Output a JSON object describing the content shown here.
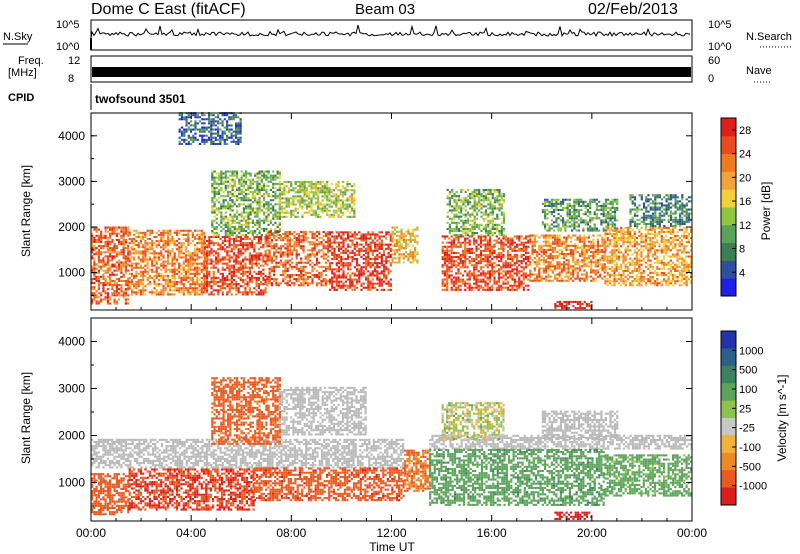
{
  "header": {
    "title": "Dome C East (fitACF)",
    "beam": "Beam 03",
    "date": "02/Feb/2013"
  },
  "status": {
    "nsky_label": "N.Sky",
    "nsky_ticks": [
      "10^5",
      "10^0"
    ],
    "nsearch_label": "N.Search",
    "nsearch_ticks": [
      "10^5",
      "10^0"
    ],
    "freq_label_1": "Freq.",
    "freq_label_2": "[MHz]",
    "freq_ticks": [
      "12",
      "8"
    ],
    "nave_label": "Nave",
    "nave_ticks": [
      "60",
      "0"
    ],
    "cpid_label": "CPID",
    "cpid_value": "twofsound 3501"
  },
  "colors": {
    "power_scale": [
      "#1f1fe6",
      "#2d4fa0",
      "#3b7e56",
      "#5aa15a",
      "#8ec63f",
      "#f1d23b",
      "#f2a33a",
      "#ef7a22",
      "#ea4a1f",
      "#e01e1e"
    ],
    "velocity_scale": [
      "#2233aa",
      "#2e5e8a",
      "#3c8262",
      "#5ca45b",
      "#8cc34d",
      "#c7c7c7",
      "#f0b23c",
      "#ee8a26",
      "#ea5a20",
      "#dd1c1c"
    ],
    "ground_scatter": "#b9b9b9"
  },
  "chart_data": [
    {
      "type": "heatmap",
      "title": "Power",
      "xlabel": "",
      "ylabel": "Slant Range [km]",
      "xlim": [
        0,
        24
      ],
      "ylim": [
        180,
        4500
      ],
      "x_ticks": [
        "00:00",
        "04:00",
        "08:00",
        "12:00",
        "16:00",
        "20:00",
        "00:00"
      ],
      "y_ticks": [
        1000,
        2000,
        3000,
        4000
      ],
      "colorbar_label": "Power [dB]",
      "colorbar_ticks": [
        4,
        8,
        12,
        16,
        20,
        24,
        28
      ],
      "colorbar_range": [
        0,
        30
      ],
      "regions": [
        {
          "t0": 0.0,
          "t1": 1.5,
          "r0": 300,
          "r1": 2000,
          "value": 24
        },
        {
          "t0": 1.5,
          "t1": 4.5,
          "r0": 500,
          "r1": 1900,
          "value": 22
        },
        {
          "t0": 4.5,
          "t1": 7.0,
          "r0": 500,
          "r1": 1800,
          "value": 26
        },
        {
          "t0": 4.8,
          "t1": 7.5,
          "r0": 1800,
          "r1": 3200,
          "value": 12
        },
        {
          "t0": 7.0,
          "t1": 9.5,
          "r0": 700,
          "r1": 1900,
          "value": 24
        },
        {
          "t0": 7.5,
          "t1": 10.5,
          "r0": 2200,
          "r1": 3000,
          "value": 14
        },
        {
          "t0": 9.5,
          "t1": 12.0,
          "r0": 600,
          "r1": 1900,
          "value": 27
        },
        {
          "t0": 12.0,
          "t1": 13.0,
          "r0": 1200,
          "r1": 2000,
          "value": 18
        },
        {
          "t0": 14.0,
          "t1": 17.5,
          "r0": 600,
          "r1": 1800,
          "value": 26
        },
        {
          "t0": 14.2,
          "t1": 16.5,
          "r0": 1800,
          "r1": 2800,
          "value": 12
        },
        {
          "t0": 17.5,
          "t1": 20.5,
          "r0": 800,
          "r1": 1800,
          "value": 22
        },
        {
          "t0": 18.5,
          "t1": 20.0,
          "r0": 200,
          "r1": 350,
          "value": 29
        },
        {
          "t0": 18.0,
          "t1": 21.0,
          "r0": 1900,
          "r1": 2600,
          "value": 10
        },
        {
          "t0": 20.5,
          "t1": 24.0,
          "r0": 700,
          "r1": 2000,
          "value": 20
        },
        {
          "t0": 21.5,
          "t1": 24.0,
          "r0": 2000,
          "r1": 2700,
          "value": 8
        },
        {
          "t0": 3.5,
          "t1": 6.0,
          "r0": 3800,
          "r1": 4500,
          "value": 6
        }
      ]
    },
    {
      "type": "heatmap",
      "title": "Velocity",
      "xlabel": "Time UT",
      "ylabel": "Slant Range [km]",
      "xlim": [
        0,
        24
      ],
      "ylim": [
        180,
        4500
      ],
      "x_ticks": [
        "00:00",
        "04:00",
        "08:00",
        "12:00",
        "16:00",
        "20:00",
        "00:00"
      ],
      "y_ticks": [
        1000,
        2000,
        3000,
        4000
      ],
      "colorbar_label": "Velocity [m s^-1]",
      "colorbar_ticks": [
        "1000",
        "500",
        "100",
        "25",
        "-25",
        "-100",
        "-500",
        "-1000"
      ],
      "regions": [
        {
          "t0": 0.0,
          "t1": 1.5,
          "r0": 300,
          "r1": 1200,
          "value": -200,
          "ground": false
        },
        {
          "t0": 0.0,
          "t1": 12.5,
          "r0": 1300,
          "r1": 1900,
          "value": 0,
          "ground": true
        },
        {
          "t0": 1.5,
          "t1": 6.5,
          "r0": 400,
          "r1": 1300,
          "value": -300,
          "ground": false
        },
        {
          "t0": 4.8,
          "t1": 7.5,
          "r0": 1800,
          "r1": 3200,
          "value": -150,
          "ground": false
        },
        {
          "t0": 6.5,
          "t1": 12.5,
          "r0": 600,
          "r1": 1300,
          "value": -250,
          "ground": false
        },
        {
          "t0": 7.5,
          "t1": 11.0,
          "r0": 2000,
          "r1": 3000,
          "value": 0,
          "ground": true
        },
        {
          "t0": 12.5,
          "t1": 13.5,
          "r0": 800,
          "r1": 1700,
          "value": -100,
          "ground": false
        },
        {
          "t0": 13.5,
          "t1": 24.0,
          "r0": 1700,
          "r1": 2000,
          "value": 0,
          "ground": true
        },
        {
          "t0": 13.5,
          "t1": 20.5,
          "r0": 500,
          "r1": 1700,
          "value": 200,
          "ground": false
        },
        {
          "t0": 20.5,
          "t1": 24.0,
          "r0": 700,
          "r1": 1600,
          "value": 150,
          "ground": false
        },
        {
          "t0": 18.5,
          "t1": 20.0,
          "r0": 200,
          "r1": 350,
          "value": -400,
          "ground": false
        },
        {
          "t0": 14.0,
          "t1": 16.5,
          "r0": 1900,
          "r1": 2700,
          "value": 50,
          "ground": false
        },
        {
          "t0": 18.0,
          "t1": 21.0,
          "r0": 1900,
          "r1": 2500,
          "value": 0,
          "ground": true
        }
      ]
    }
  ]
}
